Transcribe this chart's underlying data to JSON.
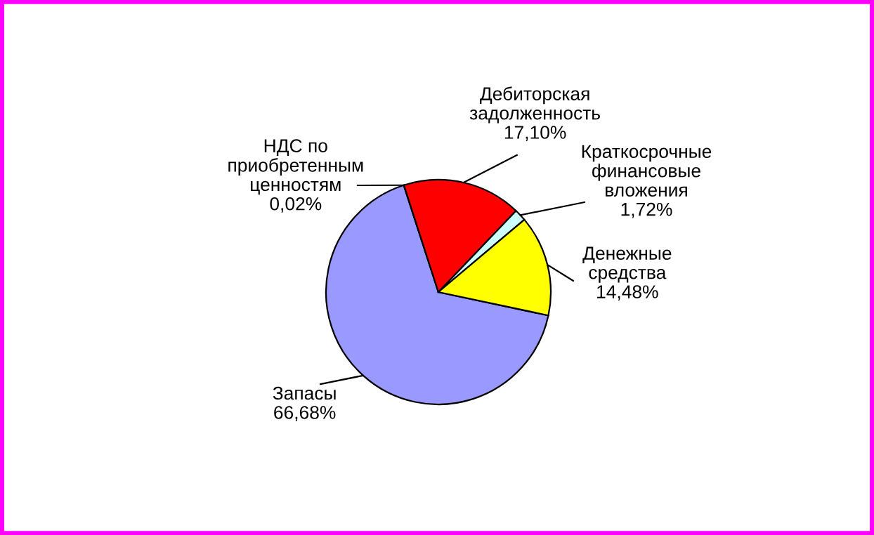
{
  "chart_data": {
    "type": "pie",
    "categories": [
      "Запасы",
      "НДС по\nприобретенным\nценностям",
      "Дебиторская\nзадолженность",
      "Краткосрочные\nфинансовые\nвложения",
      "Денежные\nсредства"
    ],
    "values": [
      66.68,
      0.02,
      17.1,
      1.72,
      14.48
    ],
    "colors": [
      "#9999ff",
      "#993366",
      "#ff0000",
      "#ccffff",
      "#ffff00"
    ],
    "value_labels": [
      "66,68%",
      "0,02%",
      "17,10%",
      "1,72%",
      "14,48%"
    ],
    "legend": false
  }
}
